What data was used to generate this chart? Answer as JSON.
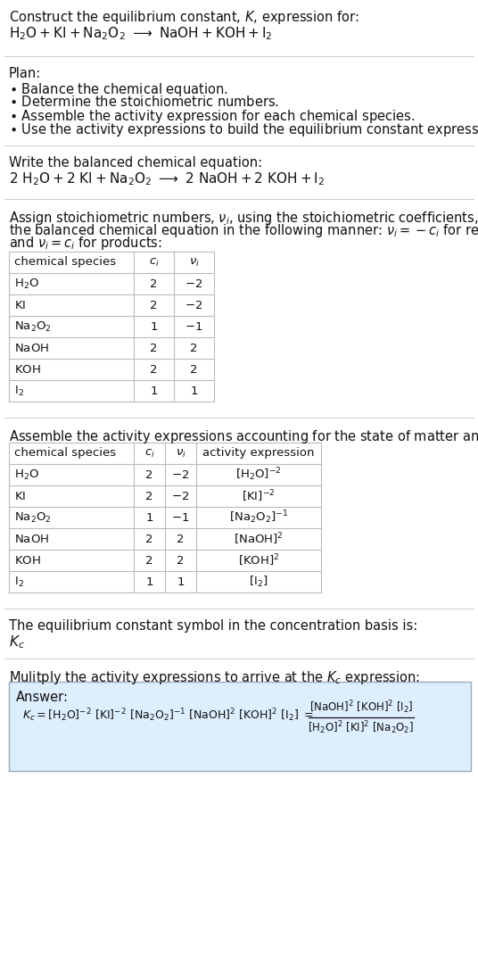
{
  "bg_color": "#ffffff",
  "border_color": "#bbbbbb",
  "answer_box_bg": "#ddeeff",
  "answer_box_border": "#99aabb",
  "text_color": "#111111",
  "sep_color": "#cccccc",
  "font_size": 10.5,
  "title_line1": "Construct the equilibrium constant, $K$, expression for:",
  "title_line2": "$\\mathrm{H_2O + KI + Na_2O_2 \\ \\longrightarrow \\ NaOH + KOH + I_2}$",
  "plan_header": "Plan:",
  "balanced_eq_header": "Write the balanced chemical equation:",
  "balanced_eq": "$\\mathrm{2\\ H_2O + 2\\ KI + Na_2O_2 \\ \\longrightarrow \\ 2\\ NaOH + 2\\ KOH + I_2}$",
  "table1_headers": [
    "chemical species",
    "$c_i$",
    "$\\nu_i$"
  ],
  "table1_rows": [
    [
      "$\\mathrm{H_2O}$",
      "2",
      "$-2$"
    ],
    [
      "$\\mathrm{KI}$",
      "2",
      "$-2$"
    ],
    [
      "$\\mathrm{Na_2O_2}$",
      "1",
      "$-1$"
    ],
    [
      "$\\mathrm{NaOH}$",
      "2",
      "2"
    ],
    [
      "$\\mathrm{KOH}$",
      "2",
      "2"
    ],
    [
      "$\\mathrm{I_2}$",
      "1",
      "1"
    ]
  ],
  "table2_headers": [
    "chemical species",
    "$c_i$",
    "$\\nu_i$",
    "activity expression"
  ],
  "table2_rows": [
    [
      "$\\mathrm{H_2O}$",
      "2",
      "$-2$",
      "$[\\mathrm{H_2O}]^{-2}$"
    ],
    [
      "$\\mathrm{KI}$",
      "2",
      "$-2$",
      "$[\\mathrm{KI}]^{-2}$"
    ],
    [
      "$\\mathrm{Na_2O_2}$",
      "1",
      "$-1$",
      "$[\\mathrm{Na_2O_2}]^{-1}$"
    ],
    [
      "$\\mathrm{NaOH}$",
      "2",
      "2",
      "$[\\mathrm{NaOH}]^2$"
    ],
    [
      "$\\mathrm{KOH}$",
      "2",
      "2",
      "$[\\mathrm{KOH}]^2$"
    ],
    [
      "$\\mathrm{I_2}$",
      "1",
      "1",
      "$[\\mathrm{I_2}]$"
    ]
  ],
  "kc_header": "The equilibrium constant symbol in the concentration basis is:",
  "kc_symbol": "$K_c$",
  "multiply_header": "Mulitply the activity expressions to arrive at the $K_c$ expression:",
  "answer_label": "Answer:"
}
